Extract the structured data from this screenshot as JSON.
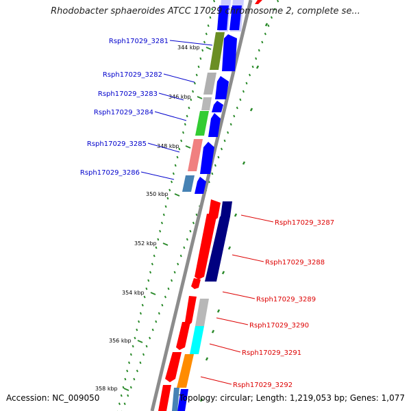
{
  "title": "Rhodobacter sphaeroides ATCC 17029 chromosome 2, complete se...",
  "footer": {
    "accession": "Accession: NC_009050",
    "summary": "Topology: circular; Length: 1,219,053 bp; Genes: 1,077"
  },
  "colors": {
    "forward_label": "#0000cc",
    "reverse_label": "#dd0000",
    "backbone": "#888888",
    "tick": "#2a8a2a"
  },
  "kbp_ticks": [
    "344 kbp",
    "346 kbp",
    "348 kbp",
    "350 kbp",
    "352 kbp",
    "354 kbp",
    "356 kbp",
    "358 kbp"
  ],
  "genes_forward": [
    {
      "label": "Rsph17029_3281",
      "category_color": "#6b8e23"
    },
    {
      "label": "Rsph17029_3282",
      "category_color": "#b0b0b0"
    },
    {
      "label": "Rsph17029_3283",
      "category_color": "#b8b8b8"
    },
    {
      "label": "Rsph17029_3284",
      "category_color": "#33cc33"
    },
    {
      "label": "Rsph17029_3285",
      "category_color": "#f08080"
    },
    {
      "label": "Rsph17029_3286",
      "category_color": "#4682b4"
    }
  ],
  "genes_reverse": [
    {
      "label": "Rsph17029_3287",
      "category_color": "#000080"
    },
    {
      "label": "Rsph17029_3288",
      "category_color": "#000080"
    },
    {
      "label": "Rsph17029_3289",
      "category_color": "#b8b8b8"
    },
    {
      "label": "Rsph17029_3290",
      "category_color": "#b8b8b8"
    },
    {
      "label": "Rsph17029_3291",
      "category_color": "#00ffff"
    },
    {
      "label": "Rsph17029_3292",
      "category_color": "#ff8c00"
    }
  ]
}
